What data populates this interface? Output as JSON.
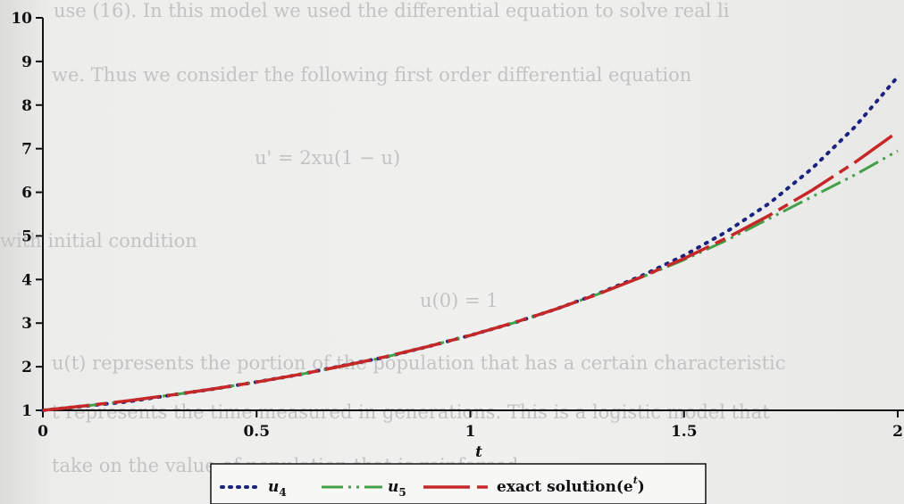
{
  "bleed_text": [
    "use (16). In this model we used the differential equation to solve real li",
    "we. Thus we consider the following first order differential equation",
    "u' = 2xu(1 − u)",
    "with initial condition",
    "u(0) = 1",
    "u(t) represents the portion of the population that has a certain characteristic",
    "t represents the time measured in generations. This is a logistic model that",
    "take on the value of population that is reinforced"
  ],
  "chart_data": {
    "type": "line",
    "title": "",
    "xlabel": "t",
    "ylabel": "",
    "xlim": [
      0,
      2
    ],
    "ylim": [
      1,
      10
    ],
    "x_ticks": [
      "0",
      "0.5",
      "1",
      "1.5",
      "2"
    ],
    "y_ticks": [
      "1",
      "2",
      "3",
      "4",
      "5",
      "6",
      "7",
      "8",
      "9",
      "10"
    ],
    "x_tick_values": [
      0,
      0.5,
      1,
      1.5,
      2
    ],
    "y_tick_values": [
      1,
      2,
      3,
      4,
      5,
      6,
      7,
      8,
      9,
      10
    ],
    "legend_position": "bottom-center",
    "grid": false,
    "series": [
      {
        "name": "u4",
        "legend_label": "u",
        "legend_sub": "4",
        "color": "#1a237e",
        "style": "dotted",
        "x": [
          0,
          0.1,
          0.2,
          0.3,
          0.4,
          0.5,
          0.6,
          0.7,
          0.8,
          0.9,
          1.0,
          1.1,
          1.2,
          1.3,
          1.4,
          1.5,
          1.6,
          1.7,
          1.8,
          1.9,
          2.0
        ],
        "y": [
          1.0,
          1.1,
          1.2,
          1.35,
          1.49,
          1.65,
          1.82,
          2.02,
          2.22,
          2.46,
          2.72,
          3.0,
          3.32,
          3.68,
          4.08,
          4.55,
          5.1,
          5.75,
          6.55,
          7.5,
          8.65
        ]
      },
      {
        "name": "u5",
        "legend_label": "u",
        "legend_sub": "5",
        "color": "#43a047",
        "style": "dashdot",
        "x": [
          0,
          0.1,
          0.2,
          0.3,
          0.4,
          0.5,
          0.6,
          0.7,
          0.8,
          0.9,
          1.0,
          1.1,
          1.2,
          1.3,
          1.4,
          1.5,
          1.6,
          1.7,
          1.8,
          1.9,
          2.0
        ],
        "y": [
          1.0,
          1.1,
          1.22,
          1.35,
          1.49,
          1.65,
          1.82,
          2.01,
          2.22,
          2.46,
          2.72,
          3.0,
          3.32,
          3.67,
          4.05,
          4.45,
          4.9,
          5.4,
          5.9,
          6.4,
          6.95
        ]
      },
      {
        "name": "exact solution(e^t)",
        "legend_label": "exact solution(e",
        "legend_sup": "t",
        "legend_tail": ")",
        "color": "#c62828",
        "style": "longdash",
        "x": [
          0,
          0.1,
          0.2,
          0.3,
          0.4,
          0.5,
          0.6,
          0.7,
          0.8,
          0.9,
          1.0,
          1.1,
          1.2,
          1.3,
          1.4,
          1.5,
          1.6,
          1.7,
          1.8,
          1.9,
          2.0
        ],
        "y": [
          1.0,
          1.105,
          1.221,
          1.35,
          1.492,
          1.649,
          1.822,
          2.014,
          2.226,
          2.46,
          2.718,
          3.004,
          3.32,
          3.669,
          4.055,
          4.482,
          4.953,
          5.474,
          6.05,
          6.686,
          7.389
        ]
      }
    ]
  }
}
